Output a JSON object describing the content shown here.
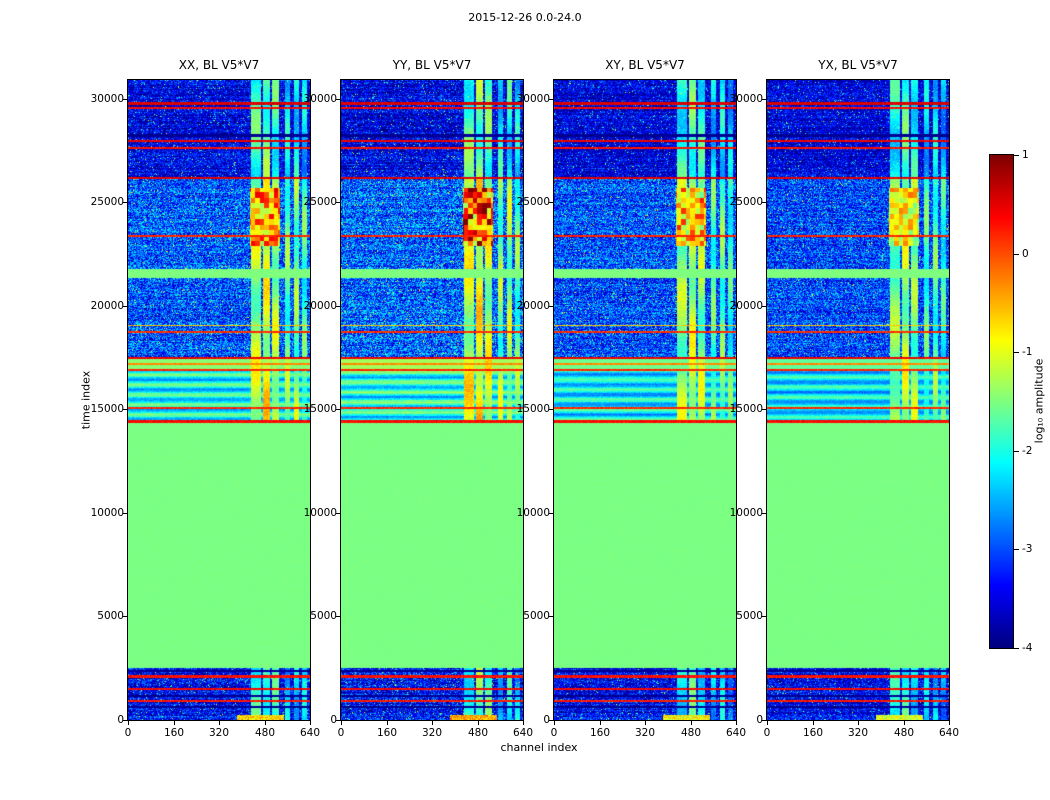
{
  "chart_data": {
    "type": "heatmap",
    "title": "2015-12-26 0.0-24.0",
    "xlabel": "channel index",
    "ylabel": "time index",
    "xlim": [
      0,
      640
    ],
    "ylim": [
      0,
      30900
    ],
    "xticks": [
      0,
      160,
      320,
      480,
      640
    ],
    "yticks": [
      0,
      5000,
      10000,
      15000,
      20000,
      25000,
      30000
    ],
    "colormap": "jet",
    "clim": [
      -4,
      1
    ],
    "colorbar": {
      "label": "log₁₀ amplitude",
      "ticks": [
        1,
        0,
        -1,
        -2,
        -3,
        -4
      ]
    },
    "panels": [
      {
        "title": "XX, BL V5*V7",
        "seed": 11,
        "gain": 1.0,
        "blob_gain": 1.0
      },
      {
        "title": "YY, BL V5*V7",
        "seed": 22,
        "gain": 1.05,
        "blob_gain": 1.2
      },
      {
        "title": "XY, BL V5*V7",
        "seed": 33,
        "gain": 0.95,
        "blob_gain": 0.95
      },
      {
        "title": "YX, BL V5*V7",
        "seed": 44,
        "gain": 0.92,
        "blob_gain": 0.8
      }
    ],
    "regions": [
      {
        "t0": 0,
        "t1": 260,
        "type": "noise",
        "base": -3.3,
        "noise": 0.7,
        "band_level": -2.0,
        "bottom_blob": true
      },
      {
        "t0": 260,
        "t1": 2500,
        "type": "noise",
        "base": -3.4,
        "noise": 0.7,
        "band_level": -2.0
      },
      {
        "t0": 2500,
        "t1": 14350,
        "type": "flat",
        "base": -1.52
      },
      {
        "t0": 14350,
        "t1": 16860,
        "type": "stripes",
        "base": -2.1,
        "noise": 0.35,
        "band_level": -1.15
      },
      {
        "t0": 16860,
        "t1": 17520,
        "type": "flat2",
        "base": -1.45,
        "band_level": -1.2
      },
      {
        "t0": 17520,
        "t1": 21320,
        "type": "noise",
        "base": -3.0,
        "noise": 0.8,
        "band_level": -1.35
      },
      {
        "t0": 21320,
        "t1": 21760,
        "type": "flat",
        "base": -1.5
      },
      {
        "t0": 21760,
        "t1": 26120,
        "type": "noise",
        "base": -2.95,
        "noise": 0.8,
        "band_level": -1.3,
        "blob": {
          "t0": 22900,
          "t1": 25700,
          "c0": 428,
          "c1": 536
        }
      },
      {
        "t0": 26120,
        "t1": 30900,
        "type": "noise",
        "base": -3.5,
        "noise": 0.65,
        "band_level": -1.9
      }
    ],
    "vertical_bands": [
      {
        "c0": 432,
        "c1": 468,
        "offset": 0.0
      },
      {
        "c0": 474,
        "c1": 498,
        "offset": 0.25
      },
      {
        "c0": 506,
        "c1": 532,
        "offset": 0.0
      },
      {
        "c0": 552,
        "c1": 570,
        "offset": -0.35
      },
      {
        "c0": 584,
        "c1": 602,
        "offset": -0.25
      },
      {
        "c0": 612,
        "c1": 630,
        "offset": -0.5
      }
    ],
    "horizontal_lines": [
      {
        "t": 640,
        "v": -3.9,
        "hw": 50
      },
      {
        "t": 900,
        "v": 0.25,
        "hw": 50
      },
      {
        "t": 1180,
        "v": -3.9,
        "hw": 50
      },
      {
        "t": 1500,
        "v": 0.35,
        "hw": 50
      },
      {
        "t": 2100,
        "v": 0.3,
        "hw": 50
      },
      {
        "t": 2380,
        "v": -3.9,
        "hw": 50
      },
      {
        "t": 14420,
        "v": 0.35,
        "hw": 60
      },
      {
        "t": 15050,
        "v": 0.2,
        "hw": 40
      },
      {
        "t": 16900,
        "v": 0.2,
        "hw": 50
      },
      {
        "t": 17180,
        "v": -0.3,
        "hw": 40
      },
      {
        "t": 17480,
        "v": 0.45,
        "hw": 60
      },
      {
        "t": 18720,
        "v": 0.15,
        "hw": 50
      },
      {
        "t": 19050,
        "v": -0.6,
        "hw": 40
      },
      {
        "t": 23360,
        "v": 0.2,
        "hw": 50
      },
      {
        "t": 26160,
        "v": 0.5,
        "hw": 60
      },
      {
        "t": 27620,
        "v": 0.3,
        "hw": 50
      },
      {
        "t": 27960,
        "v": 0.45,
        "hw": 50
      },
      {
        "t": 28220,
        "v": -3.9,
        "hw": 50
      },
      {
        "t": 29530,
        "v": 0.35,
        "hw": 50
      },
      {
        "t": 29760,
        "v": 0.55,
        "hw": 60
      }
    ]
  }
}
